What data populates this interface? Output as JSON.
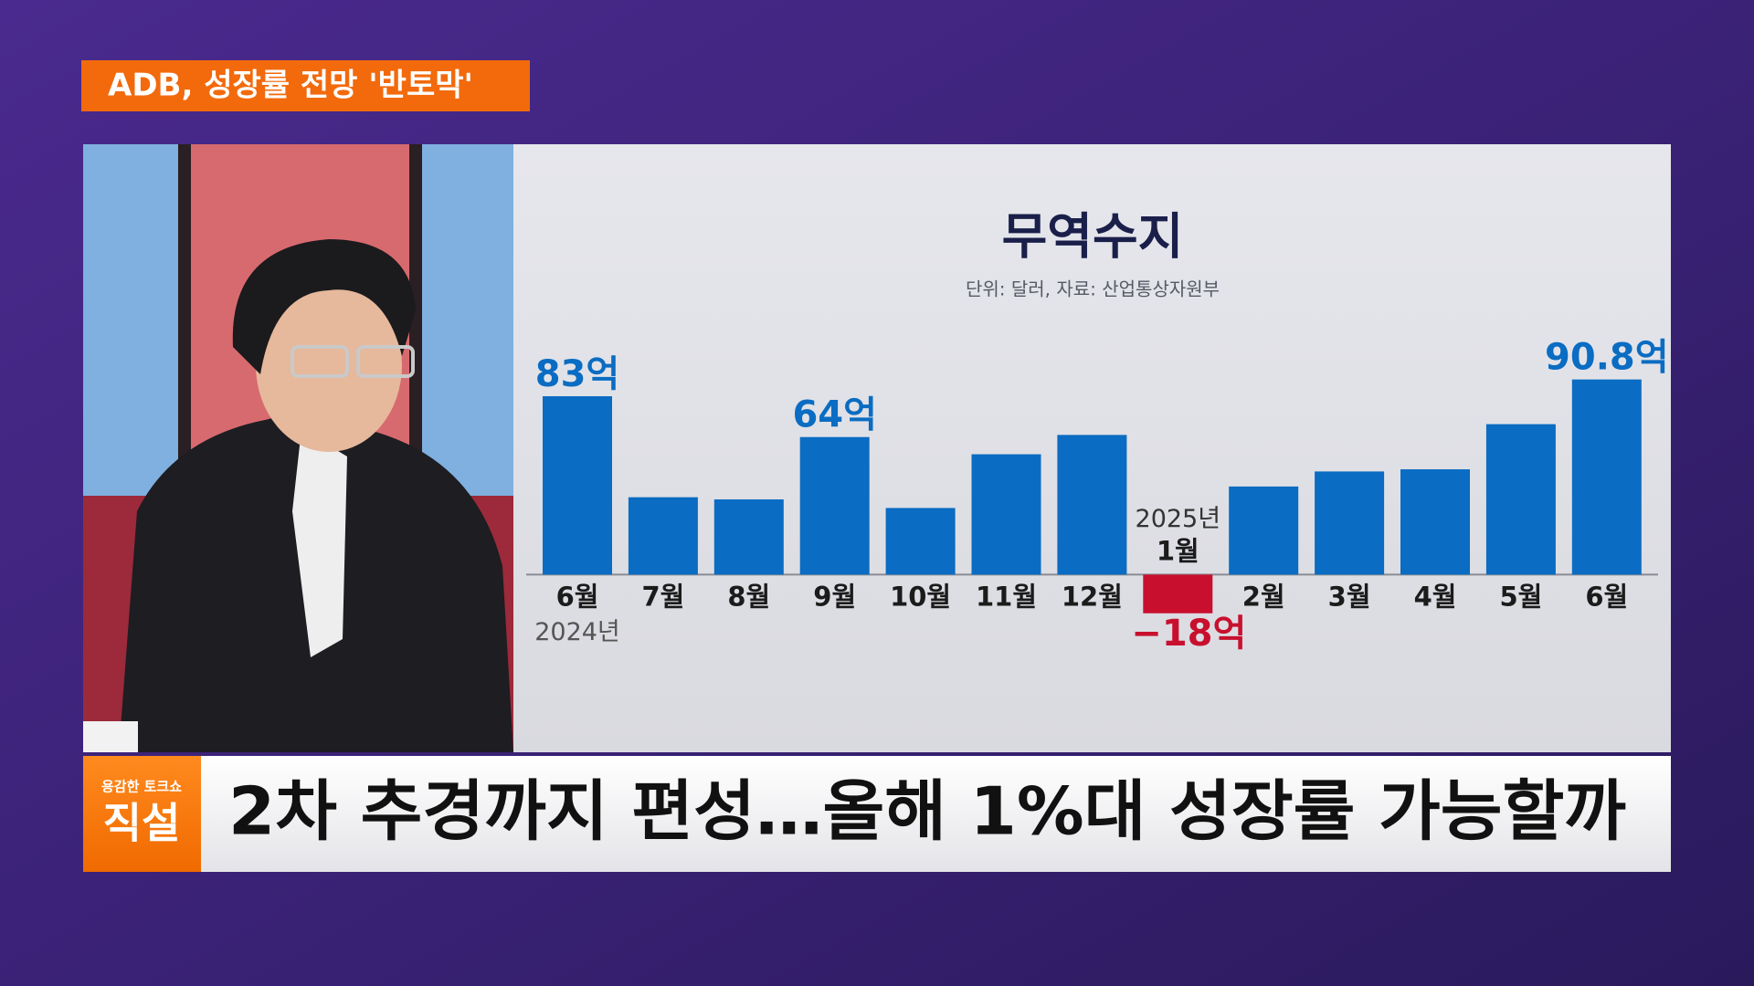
{
  "header": {
    "tag": "ADB, 성장률 전망 '반토막'"
  },
  "chart_data": {
    "type": "bar",
    "title": "무역수지",
    "subtitle": "단위: 달러, 자료: 산업통상자원부",
    "categories": [
      "6월",
      "7월",
      "8월",
      "9월",
      "10월",
      "11월",
      "12월",
      "1월",
      "2월",
      "3월",
      "4월",
      "5월",
      "6월"
    ],
    "year_labels": [
      "2024년",
      null,
      null,
      null,
      null,
      null,
      null,
      "2025년",
      null,
      null,
      null,
      null,
      null
    ],
    "values": [
      83,
      36,
      35,
      64,
      31,
      56,
      65,
      -18,
      41,
      48,
      49,
      70,
      90.8
    ],
    "value_labels": [
      "83억",
      null,
      null,
      "64억",
      null,
      null,
      null,
      "−18억",
      null,
      null,
      null,
      null,
      "90.8억"
    ],
    "color": "#0a6cc2",
    "negative_color": "#c8102e",
    "ylim": [
      -30,
      100
    ]
  },
  "caption": {
    "logo_top": "용감한 토크쇼",
    "logo_main": "직설",
    "headline": "2차 추경까지 편성…올해 1%대 성장률 가능할까"
  }
}
